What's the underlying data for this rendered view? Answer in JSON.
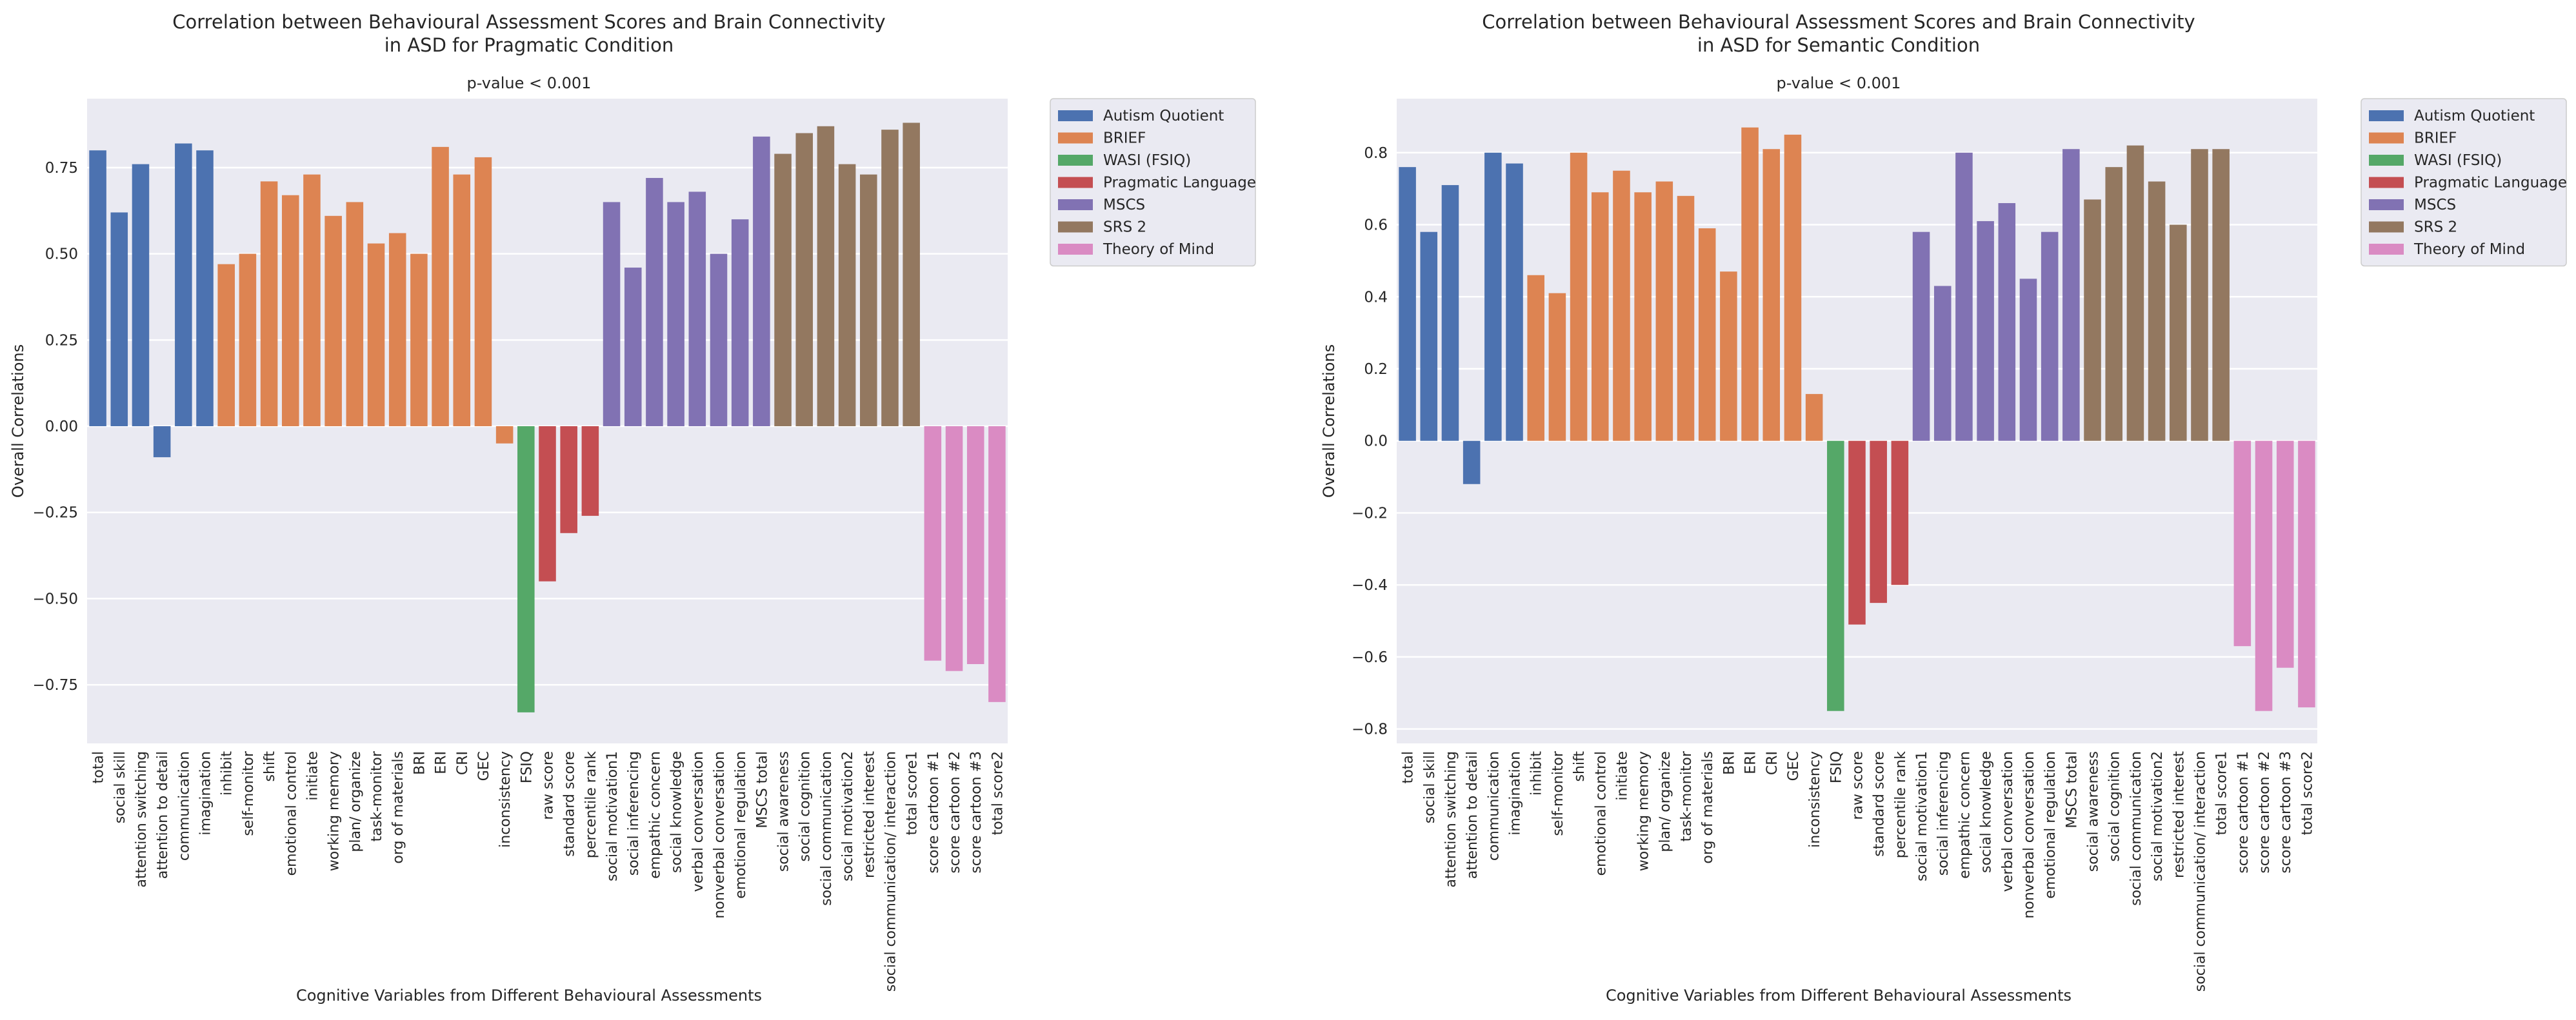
{
  "figure_label": "Behavioural assessment correlation figure",
  "colors": {
    "plot_background": "#EAEAF2",
    "grid": "#FFFFFF",
    "text": "#262626",
    "groups": {
      "Autism Quotient": "#4C72B0",
      "BRIEF": "#DD8452",
      "WASI (FSIQ)": "#55A868",
      "Pragmatic Language": "#C44E52",
      "MSCS": "#8172B3",
      "SRS 2": "#937860",
      "Theory of Mind": "#DA8BC3"
    }
  },
  "chart_data": [
    {
      "type": "bar",
      "title": "Correlation between Behavioural Assessment Scores and Brain Connectivity\nin ASD for Pragmatic Condition",
      "subtitle": "p-value < 0.001",
      "xlabel": "Cognitive Variables from Different Behavioural Assessments",
      "ylabel": "Overall Correlations",
      "ylim": [
        -0.92,
        0.95
      ],
      "yticks": [
        -0.75,
        -0.5,
        -0.25,
        0.0,
        0.25,
        0.5,
        0.75
      ],
      "ytick_labels": [
        "−0.75",
        "−0.50",
        "−0.25",
        "0.00",
        "0.25",
        "0.50",
        "0.75"
      ],
      "grid": true,
      "legend_position": "outside-top-right",
      "legend": [
        "Autism Quotient",
        "BRIEF",
        "WASI (FSIQ)",
        "Pragmatic Language",
        "MSCS",
        "SRS 2",
        "Theory of Mind"
      ],
      "categories": [
        "total",
        "social skill",
        "attention switching",
        "attention to detail",
        "communication",
        "imagination",
        "inhibit",
        "self-monitor",
        "shift",
        "emotional control",
        "initiate",
        "working memory",
        "plan/ organize",
        "task-monitor",
        "org of materials",
        "BRI",
        "ERI",
        "CRI",
        "GEC",
        "inconsistency",
        "FSIQ",
        "raw score",
        "standard score",
        "percentile rank",
        "social motivation1",
        "social inferencing",
        "empathic concern",
        "social knowledge",
        "verbal conversation",
        "nonverbal conversation",
        "emotional regulation",
        "MSCS total",
        "social awareness",
        "social cognition",
        "social communication",
        "social motivation2",
        "restricted interest",
        "social communication/ interaction",
        "total score1",
        "score cartoon #1",
        "score cartoon #2",
        "score cartoon #3",
        "total score2"
      ],
      "groups": [
        "Autism Quotient",
        "Autism Quotient",
        "Autism Quotient",
        "Autism Quotient",
        "Autism Quotient",
        "Autism Quotient",
        "BRIEF",
        "BRIEF",
        "BRIEF",
        "BRIEF",
        "BRIEF",
        "BRIEF",
        "BRIEF",
        "BRIEF",
        "BRIEF",
        "BRIEF",
        "BRIEF",
        "BRIEF",
        "BRIEF",
        "BRIEF",
        "WASI (FSIQ)",
        "Pragmatic Language",
        "Pragmatic Language",
        "Pragmatic Language",
        "MSCS",
        "MSCS",
        "MSCS",
        "MSCS",
        "MSCS",
        "MSCS",
        "MSCS",
        "MSCS",
        "SRS 2",
        "SRS 2",
        "SRS 2",
        "SRS 2",
        "SRS 2",
        "SRS 2",
        "SRS 2",
        "Theory of Mind",
        "Theory of Mind",
        "Theory of Mind",
        "Theory of Mind"
      ],
      "values": [
        0.8,
        0.62,
        0.76,
        -0.09,
        0.82,
        0.8,
        0.47,
        0.5,
        0.71,
        0.67,
        0.73,
        0.61,
        0.65,
        0.53,
        0.56,
        0.5,
        0.81,
        0.73,
        0.78,
        -0.05,
        -0.83,
        -0.45,
        -0.31,
        -0.26,
        0.65,
        0.46,
        0.72,
        0.65,
        0.68,
        0.5,
        0.6,
        0.84,
        0.79,
        0.85,
        0.87,
        0.76,
        0.73,
        0.86,
        0.88,
        -0.68,
        -0.71,
        -0.69,
        -0.8
      ]
    },
    {
      "type": "bar",
      "title": "Correlation between Behavioural Assessment Scores and Brain Connectivity\nin ASD for Semantic Condition",
      "subtitle": "p-value < 0.001",
      "xlabel": "Cognitive Variables from Different Behavioural Assessments",
      "ylabel": "Overall Correlations",
      "ylim": [
        -0.84,
        0.95
      ],
      "yticks": [
        -0.8,
        -0.6,
        -0.4,
        -0.2,
        0.0,
        0.2,
        0.4,
        0.6,
        0.8
      ],
      "ytick_labels": [
        "−0.8",
        "−0.6",
        "−0.4",
        "−0.2",
        "0.0",
        "0.2",
        "0.4",
        "0.6",
        "0.8"
      ],
      "grid": true,
      "legend_position": "outside-top-right",
      "legend": [
        "Autism Quotient",
        "BRIEF",
        "WASI (FSIQ)",
        "Pragmatic Language",
        "MSCS",
        "SRS 2",
        "Theory of Mind"
      ],
      "categories": [
        "total",
        "social skill",
        "attention switching",
        "attention to detail",
        "communication",
        "imagination",
        "inhibit",
        "self-monitor",
        "shift",
        "emotional control",
        "initiate",
        "working memory",
        "plan/ organize",
        "task-monitor",
        "org of materials",
        "BRI",
        "ERI",
        "CRI",
        "GEC",
        "inconsistency",
        "FSIQ",
        "raw score",
        "standard score",
        "percentile rank",
        "social motivation1",
        "social inferencing",
        "empathic concern",
        "social knowledge",
        "verbal conversation",
        "nonverbal conversation",
        "emotional regulation",
        "MSCS total",
        "social awareness",
        "social cognition",
        "social communication",
        "social motivation2",
        "restricted interest",
        "social communication/ interaction",
        "total score1",
        "score cartoon #1",
        "score cartoon #2",
        "score cartoon #3",
        "total score2"
      ],
      "groups": [
        "Autism Quotient",
        "Autism Quotient",
        "Autism Quotient",
        "Autism Quotient",
        "Autism Quotient",
        "Autism Quotient",
        "BRIEF",
        "BRIEF",
        "BRIEF",
        "BRIEF",
        "BRIEF",
        "BRIEF",
        "BRIEF",
        "BRIEF",
        "BRIEF",
        "BRIEF",
        "BRIEF",
        "BRIEF",
        "BRIEF",
        "BRIEF",
        "WASI (FSIQ)",
        "Pragmatic Language",
        "Pragmatic Language",
        "Pragmatic Language",
        "MSCS",
        "MSCS",
        "MSCS",
        "MSCS",
        "MSCS",
        "MSCS",
        "MSCS",
        "MSCS",
        "SRS 2",
        "SRS 2",
        "SRS 2",
        "SRS 2",
        "SRS 2",
        "SRS 2",
        "SRS 2",
        "Theory of Mind",
        "Theory of Mind",
        "Theory of Mind",
        "Theory of Mind"
      ],
      "values": [
        0.76,
        0.58,
        0.71,
        -0.12,
        0.8,
        0.77,
        0.46,
        0.41,
        0.8,
        0.69,
        0.75,
        0.69,
        0.72,
        0.68,
        0.59,
        0.47,
        0.87,
        0.81,
        0.85,
        0.13,
        -0.75,
        -0.51,
        -0.45,
        -0.4,
        0.58,
        0.43,
        0.8,
        0.61,
        0.66,
        0.45,
        0.58,
        0.81,
        0.67,
        0.76,
        0.82,
        0.72,
        0.6,
        0.81,
        0.81,
        -0.57,
        -0.75,
        -0.63,
        -0.74
      ]
    }
  ]
}
